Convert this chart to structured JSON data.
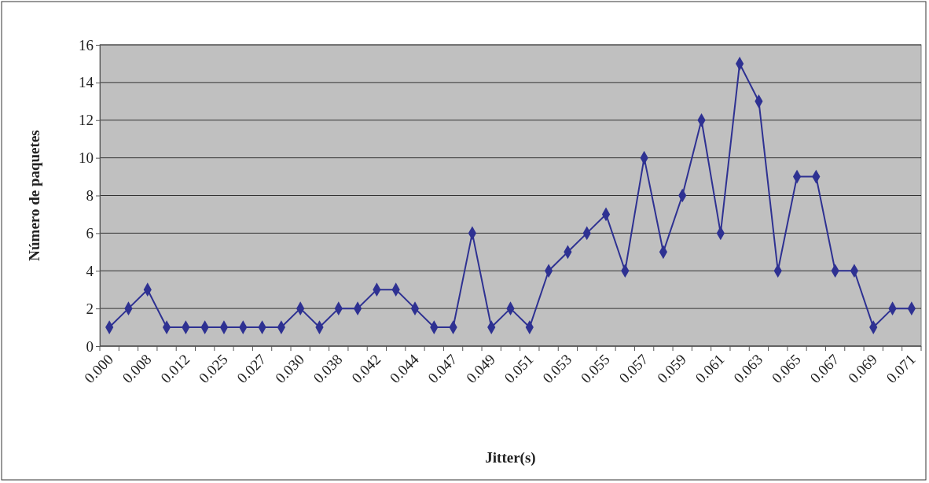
{
  "chart_data": {
    "type": "line",
    "xlabel": "Jitter(s)",
    "ylabel": "Número de paquetes",
    "categories": [
      "0.000",
      null,
      "0.008",
      null,
      "0.012",
      null,
      "0.025",
      null,
      "0.027",
      null,
      "0.030",
      null,
      "0.038",
      null,
      "0.042",
      null,
      "0.044",
      null,
      "0.047",
      null,
      "0.049",
      null,
      "0.051",
      null,
      "0.053",
      null,
      "0.055",
      null,
      "0.057",
      null,
      "0.059",
      null,
      "0.061",
      null,
      "0.063",
      null,
      "0.065",
      null,
      "0.067",
      null,
      "0.069",
      null,
      "0.071"
    ],
    "series": [
      {
        "color": "#2e3192",
        "values": [
          1,
          2,
          3,
          1,
          1,
          1,
          1,
          1,
          1,
          1,
          2,
          1,
          2,
          2,
          3,
          3,
          2,
          1,
          1,
          6,
          1,
          2,
          1,
          4,
          5,
          6,
          7,
          4,
          10,
          5,
          8,
          12,
          6,
          15,
          13,
          4,
          9,
          9,
          4,
          4,
          1,
          2,
          2
        ]
      }
    ],
    "ylim": [
      0,
      16
    ],
    "yticks": [
      0,
      2,
      4,
      6,
      8,
      10,
      12,
      14,
      16
    ],
    "grid": "y",
    "marker": "diamond"
  }
}
